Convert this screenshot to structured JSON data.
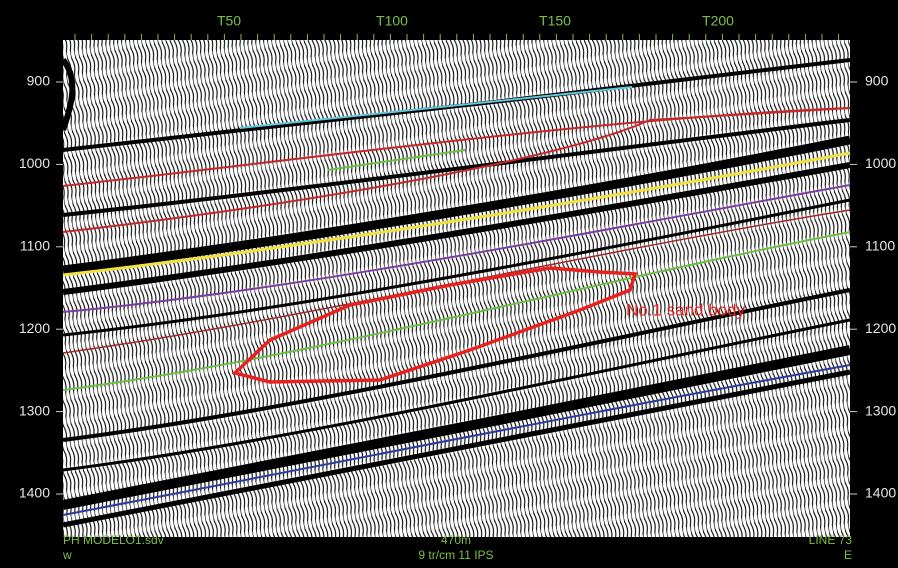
{
  "trace_labels": [
    "T50",
    "T100",
    "T150",
    "T200"
  ],
  "time_labels": [
    "900",
    "1000",
    "1100",
    "1200",
    "1300",
    "1400"
  ],
  "footer": {
    "file": "PH  MODELO1.sdv",
    "left_dir": "w",
    "scale": "470m",
    "settings": "9  tr/cm  11  IPS",
    "line": "LINE  73",
    "right_dir": "E"
  },
  "annotation": "No.1 sand body"
}
